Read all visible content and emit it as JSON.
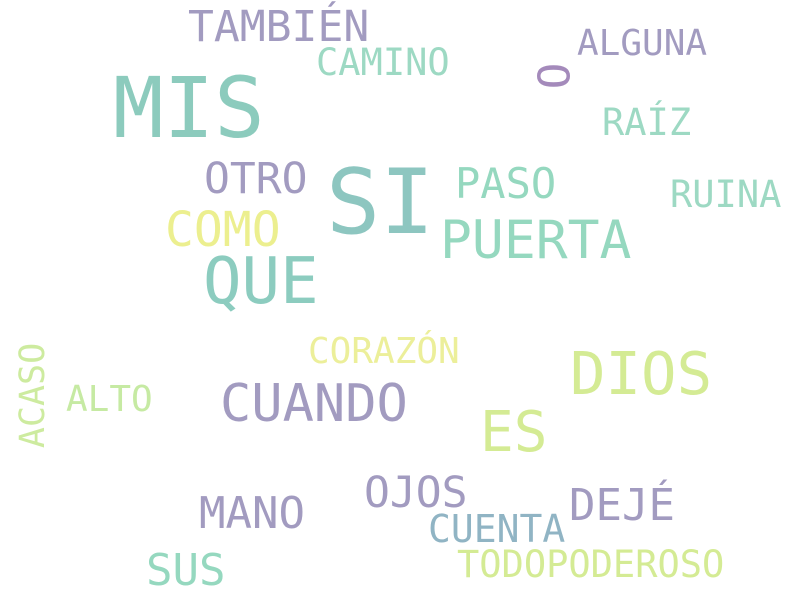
{
  "wordcloud": {
    "words": [
      {
        "text": "MIS",
        "color": "#8ccbbd"
      },
      {
        "text": "SI",
        "color": "#8dc6c0"
      },
      {
        "text": "QUE",
        "color": "#8cccbf"
      },
      {
        "text": "PUERTA",
        "color": "#95d8bf"
      },
      {
        "text": "DIOS",
        "color": "#d4eb94"
      },
      {
        "text": "CUANDO",
        "color": "#a29bc0"
      },
      {
        "text": "ES",
        "color": "#d4eb94"
      },
      {
        "text": "TAMBIÉN",
        "color": "#a29bc0"
      },
      {
        "text": "COMO",
        "color": "#ecef8f"
      },
      {
        "text": "OTRO",
        "color": "#a29bc0"
      },
      {
        "text": "PASO",
        "color": "#95d8bf"
      },
      {
        "text": "O",
        "color": "#a48abb"
      },
      {
        "text": "ALGUNA",
        "color": "#a29bc0"
      },
      {
        "text": "CAMINO",
        "color": "#9dd9c3"
      },
      {
        "text": "RAÍZ",
        "color": "#9dd9c3"
      },
      {
        "text": "RUINA",
        "color": "#9dd9c3"
      },
      {
        "text": "CORAZÓN",
        "color": "#ecef9a"
      },
      {
        "text": "ACASO",
        "color": "#cdeb9f"
      },
      {
        "text": "ALTO",
        "color": "#c6eaa3"
      },
      {
        "text": "OJOS",
        "color": "#a29bc0"
      },
      {
        "text": "DEJÉ",
        "color": "#a29bc0"
      },
      {
        "text": "MANO",
        "color": "#a29bc0"
      },
      {
        "text": "CUENTA",
        "color": "#90b4c4"
      },
      {
        "text": "SUS",
        "color": "#95d8bf"
      },
      {
        "text": "TODOPODEROSO",
        "color": "#d4eb94"
      }
    ]
  }
}
